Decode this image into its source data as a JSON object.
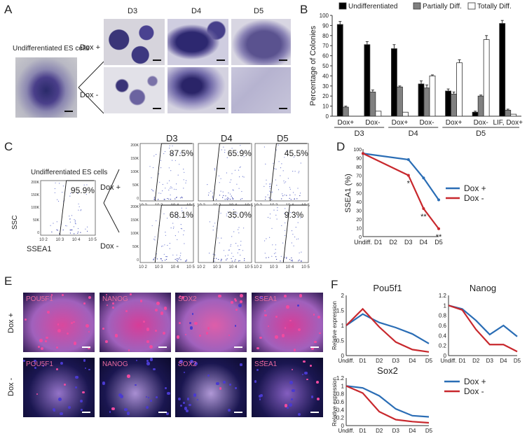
{
  "panel_letters": {
    "A": "A",
    "B": "B",
    "C": "C",
    "D": "D",
    "E": "E",
    "F": "F"
  },
  "panelA": {
    "undiff_label": "Undifferentiated ES cells",
    "days": [
      "D3",
      "D4",
      "D5"
    ],
    "dox_plus": "Dox +",
    "dox_minus": "Dox -"
  },
  "panelC": {
    "undiff_label": "Undifferentiated ES cells",
    "days": [
      "D3",
      "D4",
      "D5"
    ],
    "dox_plus": "Dox +",
    "dox_minus": "Dox -",
    "undiff_pct": "95.9%",
    "plus_pcts": [
      "87.5%",
      "65.9%",
      "45.5%"
    ],
    "minus_pcts": [
      "68.1%",
      "35.0%",
      "9.3%"
    ],
    "y_axis": "SSC",
    "x_axis": "SSEA1",
    "y_ticks": [
      "200K",
      "150K",
      "100K",
      "50K",
      "0"
    ],
    "x_ticks": [
      "10 2",
      "10 3",
      "10 4",
      "10 5"
    ]
  },
  "panelE": {
    "row_plus": "Dox +",
    "row_minus": "Dox -",
    "markers": [
      "POU5F1",
      "NANOG",
      "SOX2",
      "SSEA1"
    ]
  },
  "chart_data": [
    {
      "id": "B",
      "type": "bar",
      "ylabel": "Percentage of Colonies",
      "ylim": [
        0,
        100
      ],
      "yticks": [
        0,
        10,
        20,
        30,
        40,
        50,
        60,
        70,
        80,
        90,
        100
      ],
      "legend": [
        "Undifferentiated",
        "Partially Diff.",
        "Totally Diff."
      ],
      "colors": [
        "#000000",
        "#808080",
        "#ffffff"
      ],
      "categories": [
        "Dox+",
        "Dox-",
        "Dox+",
        "Dox-",
        "Dox+",
        "Dox-",
        "LIF, Dox+"
      ],
      "groups": [
        {
          "label": "D3",
          "span": [
            0,
            1
          ]
        },
        {
          "label": "D4",
          "span": [
            2,
            3
          ]
        },
        {
          "label": "D5",
          "span": [
            4,
            6
          ]
        }
      ],
      "series": [
        {
          "name": "Undifferentiated",
          "values": [
            91,
            71,
            67,
            32,
            25,
            4,
            92
          ],
          "errors": [
            3,
            3,
            4,
            3,
            2,
            1,
            3
          ]
        },
        {
          "name": "Partially Diff.",
          "values": [
            9,
            24,
            29,
            28,
            22,
            20,
            6
          ],
          "errors": [
            1,
            2,
            1,
            3,
            2,
            1,
            1
          ]
        },
        {
          "name": "Totally Diff.",
          "values": [
            0,
            5,
            4,
            40,
            53,
            76,
            2
          ],
          "errors": [
            0,
            0,
            0,
            1,
            3,
            4,
            0
          ]
        }
      ]
    },
    {
      "id": "D",
      "type": "line",
      "ylabel": "SSEA1 (%)",
      "ylim": [
        0,
        100
      ],
      "yticks": [
        0,
        10,
        20,
        30,
        40,
        50,
        60,
        70,
        80,
        90,
        100
      ],
      "x": [
        "Undiff.",
        "D1",
        "D2",
        "D3",
        "D4",
        "D5"
      ],
      "series": [
        {
          "name": "Dox +",
          "color": "#2a6db5",
          "values": [
            95,
            null,
            null,
            88,
            67,
            42
          ]
        },
        {
          "name": "Dox -",
          "color": "#c8282d",
          "values": [
            95,
            null,
            null,
            70,
            32,
            9
          ]
        }
      ],
      "annotations": [
        {
          "x": "D3",
          "text": "*"
        },
        {
          "x": "D4",
          "text": "**"
        },
        {
          "x": "D5",
          "text": "**"
        }
      ]
    },
    {
      "id": "F1",
      "type": "line",
      "title": "Pou5f1",
      "ylabel": "Relative expression",
      "ylim": [
        0,
        2
      ],
      "yticks": [
        0,
        0.5,
        1,
        1.5,
        2
      ],
      "x": [
        "Undiff.",
        "D1",
        "D2",
        "D3",
        "D4",
        "D5"
      ],
      "series": [
        {
          "name": "Dox +",
          "color": "#2a6db5",
          "values": [
            1,
            1.38,
            1.1,
            0.93,
            0.72,
            0.4
          ]
        },
        {
          "name": "Dox -",
          "color": "#c8282d",
          "values": [
            1,
            1.55,
            0.95,
            0.45,
            0.2,
            0.12
          ]
        }
      ]
    },
    {
      "id": "F2",
      "type": "line",
      "title": "Nanog",
      "ylim": [
        0,
        1.2
      ],
      "yticks": [
        0,
        0.2,
        0.4,
        0.6,
        0.8,
        1,
        1.2
      ],
      "x": [
        "Undiff.",
        "D1",
        "D2",
        "D3",
        "D4",
        "D5"
      ],
      "series": [
        {
          "name": "Dox +",
          "color": "#2a6db5",
          "values": [
            1,
            0.93,
            0.7,
            0.42,
            0.6,
            0.38
          ]
        },
        {
          "name": "Dox -",
          "color": "#c8282d",
          "values": [
            1,
            0.91,
            0.52,
            0.22,
            0.22,
            0.08
          ]
        }
      ]
    },
    {
      "id": "F3",
      "type": "line",
      "title": "Sox2",
      "ylabel": "Relative expression",
      "ylim": [
        0,
        1.2
      ],
      "yticks": [
        0,
        0.2,
        0.4,
        0.6,
        0.8,
        1,
        1.2
      ],
      "x": [
        "Undiff.",
        "D1",
        "D2",
        "D3",
        "D4",
        "D5"
      ],
      "legend": [
        "Dox +",
        "Dox -"
      ],
      "series": [
        {
          "name": "Dox +",
          "color": "#2a6db5",
          "values": [
            1,
            0.95,
            0.75,
            0.42,
            0.25,
            0.22
          ]
        },
        {
          "name": "Dox -",
          "color": "#c8282d",
          "values": [
            1,
            0.82,
            0.35,
            0.15,
            0.1,
            0.07
          ]
        }
      ]
    }
  ]
}
